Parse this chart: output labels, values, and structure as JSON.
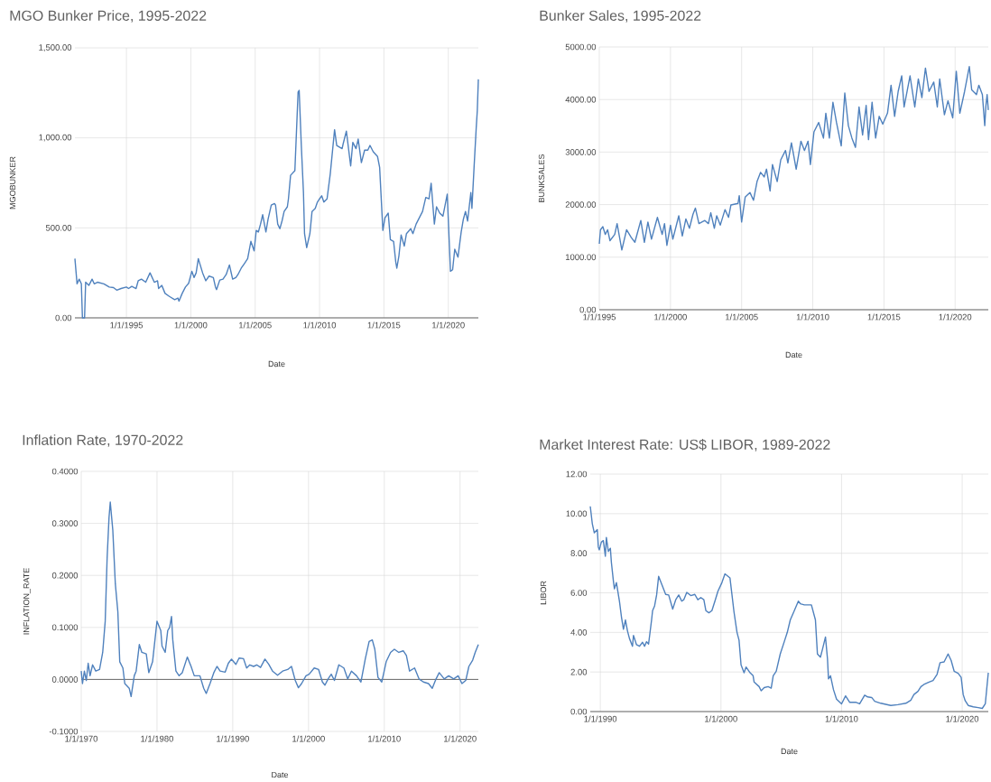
{
  "chart_data": [
    {
      "type": "line",
      "title": "MGO Bunker Price, 1995-2022",
      "xlabel": "Date",
      "ylabel": "MGOBUNKER",
      "color": "#4f81bd",
      "grid": true,
      "xlim": [
        "1991-01",
        "2022-05"
      ],
      "ylim": [
        0,
        1500
      ],
      "xticks": [
        {
          "value": "1995-01-01",
          "label": "1/1/1995"
        },
        {
          "value": "2000-01-01",
          "label": "1/1/2000"
        },
        {
          "value": "2005-01-01",
          "label": "1/1/2005"
        },
        {
          "value": "2010-01-01",
          "label": "1/1/2010"
        },
        {
          "value": "2015-01-01",
          "label": "1/1/2015"
        },
        {
          "value": "2020-01-01",
          "label": "1/1/2020"
        }
      ],
      "yticks": [
        {
          "value": 0,
          "label": "0.00"
        },
        {
          "value": 500,
          "label": "500.00"
        },
        {
          "value": 1000,
          "label": "1,000.00"
        },
        {
          "value": 1500,
          "label": "1,500.00"
        }
      ],
      "x": [
        "1991-01",
        "1991-03",
        "1991-05",
        "1991-07",
        "1991-08",
        "1991-10",
        "1991-11",
        "1992-02",
        "1992-05",
        "1992-07",
        "1992-10",
        "1993-04",
        "1993-09",
        "1994-01",
        "1994-04",
        "1994-08",
        "1995-01",
        "1995-03",
        "1995-06",
        "1995-10",
        "1995-12",
        "1996-03",
        "1996-07",
        "1996-11",
        "1997-03",
        "1997-06",
        "1997-07",
        "1997-10",
        "1998-01",
        "1998-05",
        "1998-10",
        "1999-01",
        "1999-02",
        "1999-05",
        "1999-08",
        "1999-11",
        "2000-02",
        "2000-04",
        "2000-06",
        "2000-08",
        "2000-12",
        "2001-03",
        "2001-06",
        "2001-10",
        "2001-12",
        "2002-01",
        "2002-04",
        "2002-07",
        "2002-10",
        "2003-01",
        "2003-04",
        "2003-07",
        "2003-09",
        "2003-12",
        "2004-03",
        "2004-06",
        "2004-09",
        "2004-12",
        "2005-02",
        "2005-04",
        "2005-06",
        "2005-08",
        "2005-11",
        "2006-01",
        "2006-04",
        "2006-07",
        "2006-08",
        "2006-10",
        "2006-12",
        "2007-02",
        "2007-04",
        "2007-07",
        "2007-08",
        "2007-10",
        "2008-02",
        "2008-05",
        "2008-06",
        "2008-08",
        "2008-10",
        "2008-11",
        "2009-01",
        "2009-04",
        "2009-06",
        "2009-09",
        "2009-11",
        "2010-01",
        "2010-03",
        "2010-05",
        "2010-08",
        "2010-11",
        "2011-03",
        "2011-05",
        "2011-10",
        "2011-11",
        "2012-02",
        "2012-06",
        "2012-08",
        "2012-11",
        "2013-01",
        "2013-04",
        "2013-07",
        "2013-10",
        "2013-12",
        "2014-03",
        "2014-07",
        "2014-09",
        "2014-12",
        "2015-02",
        "2015-05",
        "2015-07",
        "2015-10",
        "2015-12",
        "2016-01",
        "2016-03",
        "2016-05",
        "2016-08",
        "2016-10",
        "2017-02",
        "2017-04",
        "2017-07",
        "2017-10",
        "2018-01",
        "2018-04",
        "2018-07",
        "2018-09",
        "2018-12",
        "2019-02",
        "2019-05",
        "2019-08",
        "2019-12",
        "2020-03",
        "2020-05",
        "2020-07",
        "2020-10",
        "2021-01",
        "2021-03",
        "2021-05",
        "2021-07",
        "2021-10",
        "2021-11",
        "2022-01",
        "2022-03",
        "2022-04",
        "2022-05"
      ],
      "values": [
        329,
        189,
        215,
        189,
        0,
        0,
        198,
        180,
        215,
        189,
        198,
        189,
        171,
        168,
        154,
        163,
        171,
        163,
        175,
        163,
        206,
        215,
        198,
        250,
        198,
        206,
        163,
        180,
        136,
        119,
        101,
        110,
        93,
        136,
        171,
        192,
        259,
        224,
        250,
        329,
        250,
        206,
        232,
        224,
        171,
        157,
        210,
        215,
        241,
        294,
        215,
        224,
        241,
        276,
        302,
        329,
        425,
        372,
        486,
        477,
        521,
        573,
        477,
        547,
        626,
        635,
        626,
        521,
        495,
        538,
        591,
        617,
        661,
        792,
        818,
        1255,
        1264,
        958,
        696,
        468,
        390,
        468,
        591,
        608,
        643,
        661,
        678,
        643,
        661,
        801,
        1045,
        958,
        940,
        967,
        1037,
        844,
        975,
        940,
        993,
        862,
        932,
        932,
        958,
        923,
        897,
        836,
        486,
        556,
        582,
        434,
        425,
        311,
        276,
        346,
        460,
        399,
        468,
        495,
        468,
        521,
        556,
        591,
        669,
        661,
        748,
        521,
        617,
        582,
        565,
        687,
        259,
        267,
        381,
        337,
        477,
        547,
        591,
        538,
        696,
        608,
        836,
        1054,
        1150,
        1325
      ]
    },
    {
      "type": "line",
      "title": "Bunker Sales, 1995-2022",
      "xlabel": "Date",
      "ylabel": "BUNKSALES",
      "color": "#4f81bd",
      "grid": true,
      "xlim": [
        "1995-01",
        "2022-05"
      ],
      "ylim": [
        0,
        5000
      ],
      "xticks": [
        {
          "value": "1995-01-01",
          "label": "1/1/1995"
        },
        {
          "value": "2000-01-01",
          "label": "1/1/2000"
        },
        {
          "value": "2005-01-01",
          "label": "1/1/2005"
        },
        {
          "value": "2010-01-01",
          "label": "1/1/2010"
        },
        {
          "value": "2015-01-01",
          "label": "1/1/2015"
        },
        {
          "value": "2020-01-01",
          "label": "1/1/2020"
        }
      ],
      "yticks": [
        {
          "value": 0,
          "label": "0.00"
        },
        {
          "value": 1000,
          "label": "1000.00"
        },
        {
          "value": 2000,
          "label": "2000.00"
        },
        {
          "value": 3000,
          "label": "3000.00"
        },
        {
          "value": 4000,
          "label": "4000.00"
        },
        {
          "value": 5000,
          "label": "5000.00"
        }
      ],
      "x": [
        "1995-01",
        "1995-02",
        "1995-04",
        "1995-06",
        "1995-08",
        "1995-10",
        "1996-02",
        "1996-04",
        "1996-08",
        "1996-12",
        "1997-04",
        "1997-07",
        "1997-12",
        "1998-03",
        "1998-06",
        "1998-09",
        "1999-02",
        "1999-06",
        "1999-08",
        "1999-10",
        "2000-01",
        "2000-03",
        "2000-08",
        "2000-11",
        "2001-02",
        "2001-05",
        "2001-08",
        "2001-10",
        "2002-01",
        "2002-06",
        "2002-09",
        "2002-11",
        "2003-02",
        "2003-04",
        "2003-07",
        "2003-11",
        "2004-02",
        "2004-04",
        "2004-10",
        "2004-11",
        "2005-01",
        "2005-04",
        "2005-08",
        "2005-11",
        "2006-02",
        "2006-05",
        "2006-08",
        "2006-10",
        "2007-01",
        "2007-03",
        "2007-07",
        "2007-10",
        "2008-02",
        "2008-04",
        "2008-07",
        "2008-11",
        "2009-03",
        "2009-06",
        "2009-09",
        "2009-11",
        "2010-02",
        "2010-06",
        "2010-10",
        "2010-12",
        "2011-03",
        "2011-06",
        "2011-09",
        "2012-01",
        "2012-04",
        "2012-07",
        "2012-10",
        "2013-01",
        "2013-04",
        "2013-07",
        "2013-10",
        "2013-12",
        "2014-03",
        "2014-06",
        "2014-09",
        "2014-12",
        "2015-04",
        "2015-07",
        "2015-10",
        "2016-01",
        "2016-04",
        "2016-06",
        "2016-09",
        "2016-11",
        "2017-03",
        "2017-06",
        "2017-09",
        "2017-12",
        "2018-03",
        "2018-07",
        "2018-10",
        "2018-12",
        "2019-04",
        "2019-07",
        "2019-11",
        "2020-02",
        "2020-05",
        "2020-09",
        "2021-01",
        "2021-03",
        "2021-07",
        "2021-09",
        "2021-12",
        "2022-02",
        "2022-03",
        "2022-04",
        "2022-05"
      ],
      "values": [
        1254,
        1521,
        1580,
        1432,
        1521,
        1314,
        1432,
        1639,
        1136,
        1521,
        1373,
        1284,
        1698,
        1284,
        1669,
        1343,
        1757,
        1432,
        1639,
        1225,
        1609,
        1343,
        1787,
        1402,
        1728,
        1550,
        1817,
        1935,
        1639,
        1698,
        1639,
        1846,
        1550,
        1787,
        1609,
        1905,
        1757,
        1994,
        2024,
        2172,
        1669,
        2142,
        2231,
        2083,
        2438,
        2615,
        2527,
        2675,
        2260,
        2763,
        2438,
        2852,
        3030,
        2793,
        3177,
        2675,
        3207,
        3030,
        3207,
        2763,
        3385,
        3562,
        3266,
        3740,
        3266,
        3947,
        3562,
        3118,
        4124,
        3503,
        3266,
        3089,
        3858,
        3325,
        3888,
        3237,
        3947,
        3266,
        3680,
        3532,
        3740,
        4272,
        3680,
        4154,
        4450,
        3858,
        4213,
        4450,
        3858,
        4391,
        4035,
        4598,
        4154,
        4331,
        3858,
        4391,
        3710,
        3976,
        3651,
        4538,
        3740,
        4154,
        4627,
        4183,
        4094,
        4272,
        4094,
        3503,
        3888,
        4094,
        3799
      ]
    },
    {
      "type": "line",
      "title": "Inflation Rate, 1970-2022",
      "xlabel": "Date",
      "ylabel": "INFLATION_RATE",
      "color": "#4f81bd",
      "grid": true,
      "xlim": [
        "1970-01",
        "2022-06"
      ],
      "ylim": [
        -0.1,
        0.4
      ],
      "xticks": [
        {
          "value": "1970-01-01",
          "label": "1/1/1970"
        },
        {
          "value": "1980-01-01",
          "label": "1/1/1980"
        },
        {
          "value": "1990-01-01",
          "label": "1/1/1990"
        },
        {
          "value": "2000-01-01",
          "label": "1/1/2000"
        },
        {
          "value": "2010-01-01",
          "label": "1/1/2010"
        },
        {
          "value": "2020-01-01",
          "label": "1/1/2020"
        }
      ],
      "yticks": [
        {
          "value": -0.1,
          "label": "-0.1000"
        },
        {
          "value": 0,
          "label": "0.0000"
        },
        {
          "value": 0.1,
          "label": "0.1000"
        },
        {
          "value": 0.2,
          "label": "0.2000"
        },
        {
          "value": 0.3,
          "label": "0.3000"
        },
        {
          "value": 0.4,
          "label": "0.4000"
        }
      ],
      "ref_lines": [
        {
          "axis": "y",
          "value": 0,
          "color": "#595959"
        }
      ],
      "x": [
        "1970-01",
        "1970-03",
        "1970-06",
        "1970-09",
        "1970-12",
        "1971-03",
        "1971-07",
        "1971-12",
        "1972-06",
        "1972-11",
        "1973-03",
        "1973-06",
        "1973-09",
        "1973-11",
        "1974-03",
        "1974-07",
        "1974-11",
        "1975-02",
        "1975-07",
        "1975-10",
        "1976-05",
        "1976-08",
        "1977-01",
        "1977-04",
        "1977-09",
        "1978-01",
        "1978-08",
        "1978-12",
        "1979-06",
        "1980-01",
        "1980-07",
        "1980-09",
        "1981-02",
        "1981-06",
        "1981-09",
        "1981-12",
        "1982-02",
        "1982-07",
        "1982-12",
        "1983-05",
        "1984-01",
        "1984-07",
        "1984-12",
        "1985-09",
        "1986-03",
        "1986-07",
        "1987-01",
        "1987-07",
        "1987-12",
        "1988-05",
        "1989-01",
        "1989-06",
        "1989-11",
        "1990-06",
        "1990-11",
        "1991-06",
        "1991-11",
        "1992-04",
        "1992-10",
        "1993-03",
        "1993-09",
        "1994-04",
        "1994-10",
        "1995-04",
        "1995-12",
        "1996-08",
        "1997-04",
        "1997-10",
        "1998-04",
        "1998-09",
        "1999-02",
        "1999-09",
        "2000-02",
        "2000-10",
        "2001-05",
        "2001-11",
        "2002-03",
        "2002-08",
        "2003-01",
        "2003-06",
        "2004-01",
        "2004-09",
        "2005-03",
        "2005-09",
        "2006-05",
        "2006-12",
        "2007-07",
        "2008-01",
        "2008-06",
        "2008-10",
        "2009-03",
        "2009-09",
        "2010-04",
        "2010-11",
        "2011-05",
        "2011-12",
        "2012-07",
        "2012-12",
        "2013-05",
        "2014-01",
        "2014-08",
        "2015-03",
        "2015-11",
        "2016-05",
        "2016-11",
        "2017-04",
        "2017-12",
        "2018-07",
        "2019-03",
        "2019-10",
        "2020-04",
        "2020-10",
        "2021-03",
        "2021-09",
        "2022-01",
        "2022-06"
      ],
      "values": [
        0.016,
        -0.008,
        0.016,
        -0.002,
        0.031,
        0.007,
        0.028,
        0.016,
        0.019,
        0.052,
        0.112,
        0.233,
        0.311,
        0.341,
        0.287,
        0.184,
        0.13,
        0.034,
        0.022,
        -0.008,
        -0.017,
        -0.033,
        0.007,
        0.016,
        0.067,
        0.052,
        0.049,
        0.013,
        0.034,
        0.112,
        0.094,
        0.064,
        0.052,
        0.094,
        0.1,
        0.121,
        0.076,
        0.016,
        0.007,
        0.013,
        0.043,
        0.025,
        0.007,
        0.007,
        -0.017,
        -0.027,
        -0.008,
        0.013,
        0.025,
        0.016,
        0.014,
        0.031,
        0.039,
        0.029,
        0.041,
        0.04,
        0.022,
        0.028,
        0.025,
        0.028,
        0.023,
        0.039,
        0.029,
        0.016,
        0.008,
        0.016,
        0.019,
        0.025,
        -0.002,
        -0.016,
        -0.008,
        0.007,
        0.01,
        0.022,
        0.019,
        -0.005,
        -0.011,
        0.001,
        0.01,
        -0.002,
        0.028,
        0.022,
        0.001,
        0.016,
        0.007,
        -0.005,
        0.04,
        0.073,
        0.076,
        0.058,
        0.004,
        -0.005,
        0.034,
        0.052,
        0.058,
        0.052,
        0.055,
        0.046,
        0.016,
        0.022,
        0.001,
        -0.005,
        -0.008,
        -0.017,
        0.001,
        0.013,
        0.001,
        0.007,
        0.001,
        0.007,
        -0.008,
        -0.002,
        0.025,
        0.037,
        0.052,
        0.067
      ]
    },
    {
      "type": "line",
      "title": "Market Interest Rate: US$ LIBOR, 1989-2022",
      "xlabel": "Date",
      "ylabel": "LIBOR",
      "color": "#4f81bd",
      "grid": true,
      "xlim": [
        "1989-03",
        "2022-03"
      ],
      "ylim": [
        0,
        12
      ],
      "xticks": [
        {
          "value": "1990-01-01",
          "label": "1/1/1990"
        },
        {
          "value": "2000-01-01",
          "label": "1/1/2000"
        },
        {
          "value": "2010-01-01",
          "label": "1/1/2010"
        },
        {
          "value": "2020-01-01",
          "label": "1/1/2020"
        }
      ],
      "yticks": [
        {
          "value": 0,
          "label": "0.00"
        },
        {
          "value": 2,
          "label": "2.00"
        },
        {
          "value": 4,
          "label": "4.00"
        },
        {
          "value": 6,
          "label": "6.00"
        },
        {
          "value": 8,
          "label": "8.00"
        },
        {
          "value": 10,
          "label": "10.00"
        },
        {
          "value": 12,
          "label": "12.00"
        }
      ],
      "x": [
        "1989-03",
        "1989-05",
        "1989-07",
        "1989-10",
        "1989-11",
        "1989-12",
        "1990-02",
        "1990-04",
        "1990-06",
        "1990-07",
        "1990-09",
        "1990-11",
        "1990-12",
        "1991-02",
        "1991-03",
        "1991-05",
        "1991-08",
        "1991-10",
        "1991-12",
        "1992-02",
        "1992-04",
        "1992-06",
        "1992-09",
        "1992-10",
        "1993-01",
        "1993-04",
        "1993-07",
        "1993-09",
        "1993-11",
        "1994-01",
        "1994-04",
        "1994-05",
        "1994-07",
        "1994-09",
        "1994-11",
        "1995-02",
        "1995-06",
        "1995-09",
        "1996-01",
        "1996-04",
        "1996-07",
        "1996-10",
        "1996-12",
        "1997-03",
        "1997-07",
        "1997-11",
        "1998-02",
        "1998-05",
        "1998-08",
        "1998-10",
        "1999-01",
        "1999-04",
        "1999-07",
        "1999-10",
        "2000-02",
        "2000-05",
        "2000-10",
        "2000-12",
        "2001-02",
        "2001-05",
        "2001-07",
        "2001-09",
        "2001-12",
        "2002-02",
        "2002-06",
        "2002-09",
        "2002-10",
        "2003-03",
        "2003-05",
        "2003-08",
        "2003-12",
        "2004-03",
        "2004-05",
        "2004-08",
        "2004-12",
        "2005-04",
        "2005-07",
        "2005-10",
        "2006-02",
        "2006-06",
        "2006-08",
        "2006-12",
        "2007-03",
        "2007-07",
        "2007-11",
        "2008-01",
        "2008-04",
        "2008-06",
        "2008-09",
        "2008-11",
        "2008-12",
        "2009-02",
        "2009-05",
        "2009-08",
        "2010-01",
        "2010-05",
        "2010-09",
        "2011-03",
        "2011-07",
        "2011-12",
        "2012-03",
        "2012-07",
        "2012-10",
        "2013-04",
        "2014-02",
        "2014-09",
        "2015-05",
        "2015-10",
        "2016-01",
        "2016-05",
        "2016-08",
        "2016-11",
        "2017-04",
        "2017-08",
        "2017-12",
        "2018-03",
        "2018-07",
        "2018-11",
        "2019-02",
        "2019-05",
        "2019-09",
        "2019-12",
        "2020-02",
        "2020-04",
        "2020-07",
        "2020-12",
        "2021-05",
        "2021-09",
        "2021-12",
        "2022-03"
      ],
      "values": [
        10.37,
        9.5,
        9.03,
        9.19,
        8.32,
        8.17,
        8.56,
        8.64,
        7.85,
        8.8,
        8.09,
        8.25,
        7.54,
        6.6,
        6.2,
        6.52,
        5.58,
        4.79,
        4.16,
        4.63,
        4.08,
        3.69,
        3.3,
        3.85,
        3.38,
        3.3,
        3.5,
        3.3,
        3.53,
        3.41,
        4.63,
        5.1,
        5.34,
        5.89,
        6.83,
        6.44,
        5.92,
        5.89,
        5.18,
        5.65,
        5.89,
        5.58,
        5.65,
        6.02,
        5.86,
        5.92,
        5.65,
        5.76,
        5.65,
        5.1,
        4.99,
        5.1,
        5.58,
        6.08,
        6.52,
        6.96,
        6.75,
        5.89,
        5.03,
        4.0,
        3.61,
        2.36,
        1.96,
        2.25,
        1.96,
        1.81,
        1.49,
        1.26,
        1.05,
        1.21,
        1.26,
        1.18,
        1.81,
        2.04,
        2.91,
        3.53,
        4.0,
        4.63,
        5.1,
        5.58,
        5.45,
        5.39,
        5.39,
        5.39,
        4.63,
        2.91,
        2.75,
        3.14,
        3.77,
        2.67,
        1.65,
        1.81,
        1.1,
        0.63,
        0.39,
        0.79,
        0.47,
        0.47,
        0.39,
        0.83,
        0.74,
        0.71,
        0.52,
        0.42,
        0.31,
        0.35,
        0.42,
        0.58,
        0.86,
        1.02,
        1.26,
        1.37,
        1.49,
        1.57,
        1.88,
        2.47,
        2.51,
        2.91,
        2.59,
        2.04,
        1.93,
        1.73,
        0.86,
        0.55,
        0.31,
        0.24,
        0.2,
        0.16,
        0.39,
        1.96
      ]
    }
  ]
}
